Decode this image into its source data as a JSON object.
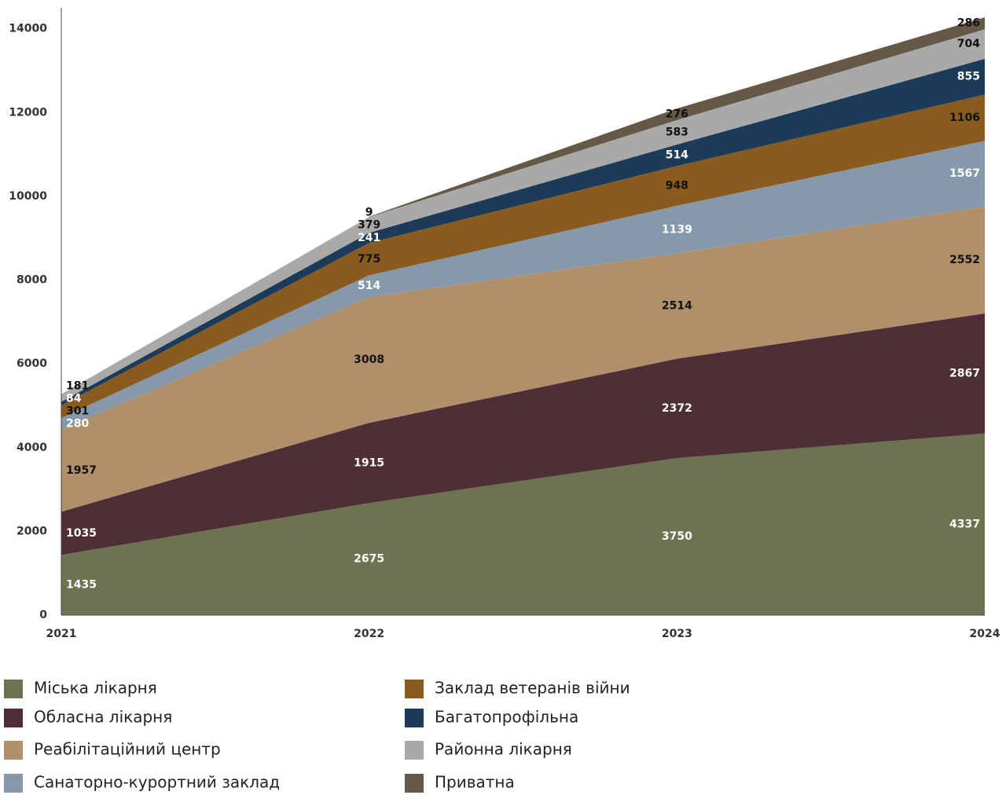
{
  "chart_data": {
    "type": "stacked_area",
    "categories": [
      "2021",
      "2022",
      "2023",
      "2024"
    ],
    "ylim": [
      0,
      14500
    ],
    "yticks": [
      0,
      2000,
      4000,
      6000,
      8000,
      10000,
      12000,
      14000
    ],
    "legend": "bottom",
    "series": [
      {
        "name": "Міська лікарня",
        "color": "#6b7350",
        "label_color": "#ffffff",
        "values": [
          1435,
          2675,
          3750,
          4337
        ]
      },
      {
        "name": "Обласна лікарня",
        "color": "#4f2f35",
        "label_color": "#ffffff",
        "values": [
          1035,
          1915,
          2372,
          2867
        ]
      },
      {
        "name": "Реабілітаційний центр",
        "color": "#b0906b",
        "label_color": "#111111",
        "values": [
          1957,
          3008,
          2514,
          2552
        ]
      },
      {
        "name": "Санаторно-курортний заклад",
        "color": "#8699aa",
        "label_color": "#ffffff",
        "values": [
          280,
          514,
          1139,
          1567
        ]
      },
      {
        "name": "Заклад ветеранів війни",
        "color": "#8a5b1f",
        "label_color": "#111111",
        "values": [
          301,
          775,
          948,
          1106
        ]
      },
      {
        "name": "Багатопрофільна",
        "color": "#1c3b58",
        "label_color": "#ffffff",
        "values": [
          84,
          241,
          514,
          855
        ]
      },
      {
        "name": "Районна лікарня",
        "color": "#a9a9a9",
        "label_color": "#111111",
        "values": [
          181,
          379,
          583,
          704
        ]
      },
      {
        "name": "Приватна",
        "color": "#645846",
        "label_color": "#111111",
        "values": [
          null,
          9,
          276,
          286
        ]
      }
    ]
  }
}
